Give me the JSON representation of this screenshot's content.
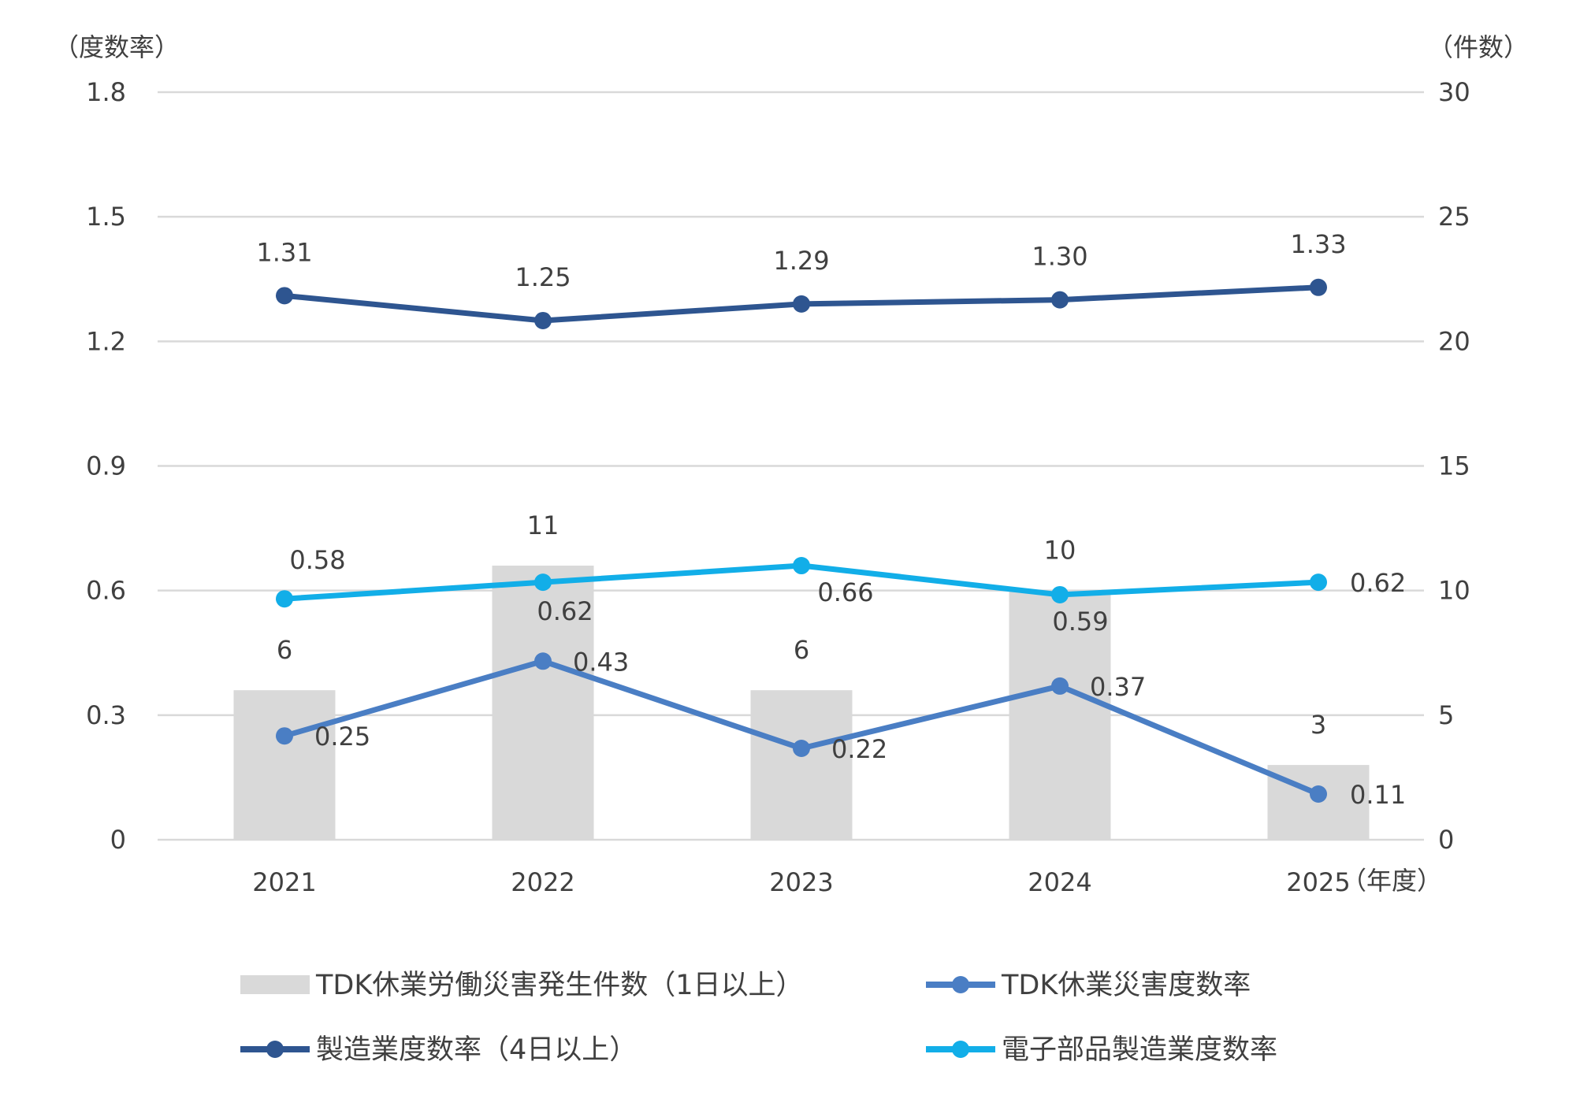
{
  "chart_data": {
    "type": "bar+line",
    "categories": [
      "2021",
      "2022",
      "2023",
      "2024",
      "2025"
    ],
    "x_unit_label": "（年度）",
    "y_left": {
      "unit_label": "（度数率）",
      "ticks": [
        "0",
        "0.3",
        "0.6",
        "0.9",
        "1.2",
        "1.5",
        "1.8"
      ],
      "ylim": [
        0,
        1.8
      ]
    },
    "y_right": {
      "unit_label": "（件数）",
      "ticks": [
        "0",
        "5",
        "10",
        "15",
        "20",
        "25",
        "30"
      ],
      "ylim": [
        0,
        30
      ]
    },
    "grid": true,
    "legend_position": "bottom",
    "series": [
      {
        "key": "bars",
        "name": "TDK休業労働災害発生件数（1日以上）",
        "type": "bar",
        "axis": "right",
        "color": "#d9d9d9",
        "values": [
          6,
          11,
          6,
          10,
          3
        ],
        "labels": [
          "6",
          "11",
          "6",
          "10",
          "3"
        ]
      },
      {
        "key": "mfg",
        "name": "製造業度数率（4日以上）",
        "type": "line",
        "axis": "left",
        "color": "#2e5590",
        "values": [
          1.31,
          1.25,
          1.29,
          1.3,
          1.33
        ],
        "labels": [
          "1.31",
          "1.25",
          "1.29",
          "1.30",
          "1.33"
        ]
      },
      {
        "key": "elec",
        "name": "電子部品製造業度数率",
        "type": "line",
        "axis": "left",
        "color": "#12aee8",
        "values": [
          0.58,
          0.62,
          0.66,
          0.59,
          0.62
        ],
        "labels": [
          "0.58",
          "0.62",
          "0.66",
          "0.59",
          "0.62"
        ]
      },
      {
        "key": "tdk",
        "name": "TDK休業災害度数率",
        "type": "line",
        "axis": "left",
        "color": "#4a7ec4",
        "values": [
          0.25,
          0.43,
          0.22,
          0.37,
          0.11
        ],
        "labels": [
          "0.25",
          "0.43",
          "0.22",
          "0.37",
          "0.11"
        ]
      }
    ],
    "legend": [
      {
        "series": "bars",
        "label": "TDK休業労働災害発生件数（1日以上）"
      },
      {
        "series": "tdk",
        "label": "TDK休業災害度数率"
      },
      {
        "series": "mfg",
        "label": "製造業度数率（4日以上）"
      },
      {
        "series": "elec",
        "label": "電子部品製造業度数率"
      }
    ]
  }
}
